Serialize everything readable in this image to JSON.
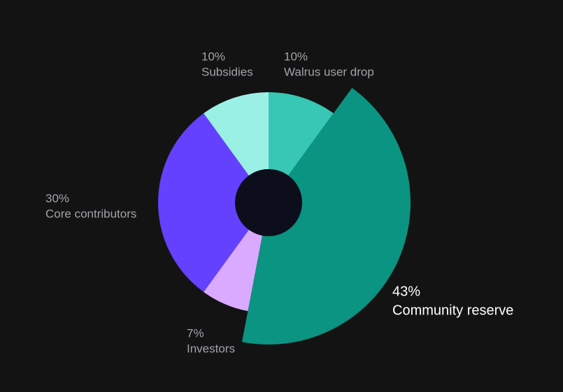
{
  "chart_data": {
    "type": "pie",
    "categories": [
      "Walrus user drop",
      "Community reserve",
      "Investors",
      "Core contributors",
      "Subsidies"
    ],
    "values": [
      10,
      43,
      7,
      30,
      10
    ],
    "value_labels": [
      "10%",
      "43%",
      "7%",
      "30%",
      "10%"
    ],
    "colors": [
      "#37c7b4",
      "#0a9481",
      "#d9aaff",
      "#6341ff",
      "#9bf0e6"
    ],
    "highlight": 1
  }
}
